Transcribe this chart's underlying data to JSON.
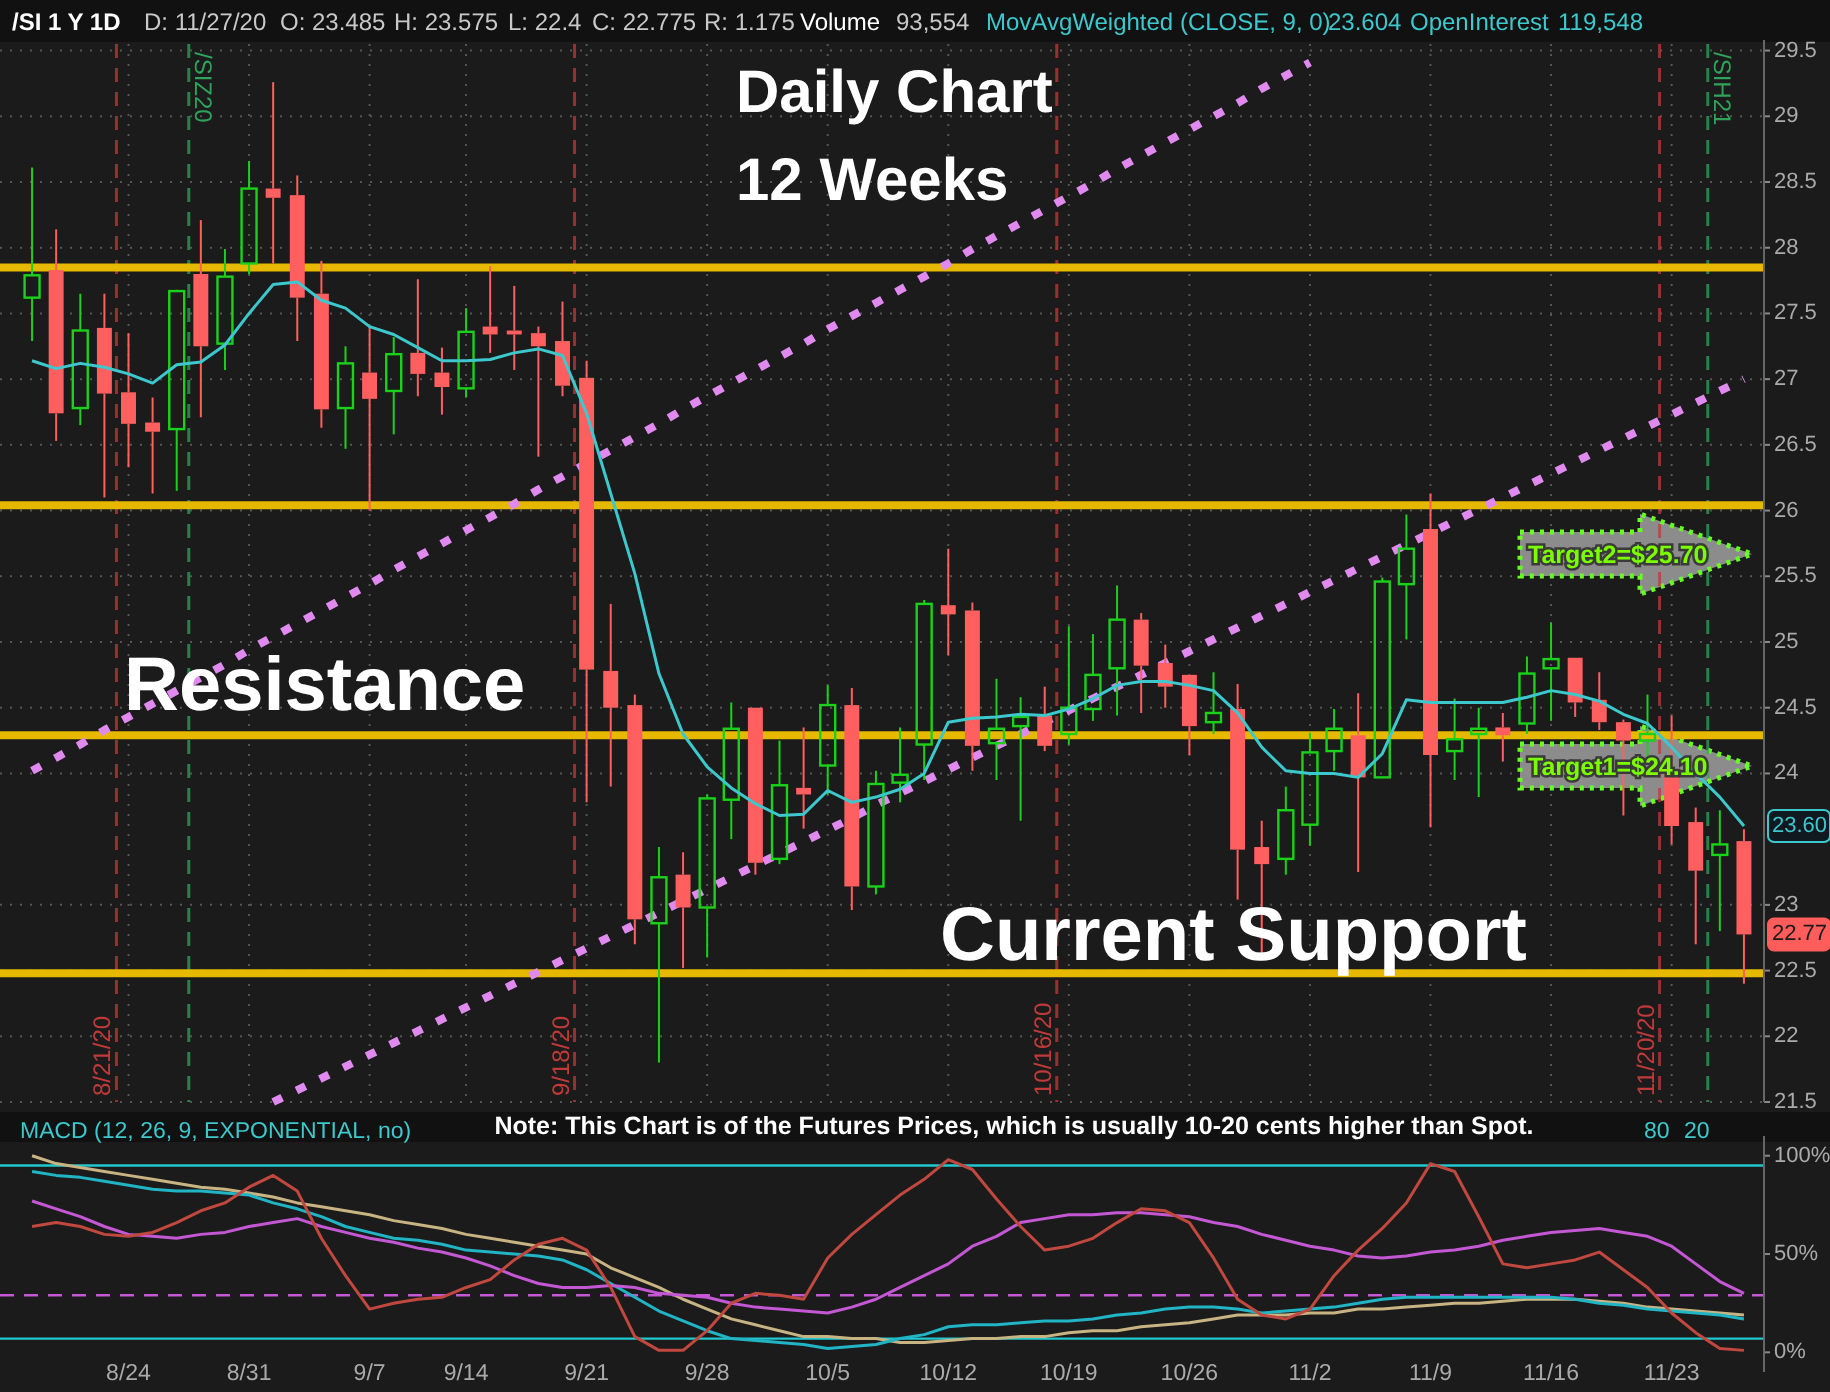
{
  "chart_data": [
    {
      "type": "candlestick",
      "title": "Daily Chart",
      "subtitle": "12 Weeks",
      "categories": [
        null,
        null,
        null,
        null,
        null,
        null,
        null,
        null,
        null,
        null,
        null,
        null,
        null,
        null,
        null,
        null,
        null,
        null,
        null,
        null,
        null,
        null,
        null,
        null,
        null,
        null,
        null,
        null,
        null,
        null,
        null,
        null,
        null,
        null,
        null,
        null,
        null,
        null,
        null,
        null,
        null,
        null,
        null,
        null,
        null,
        null,
        null,
        null,
        null,
        null,
        null,
        null,
        null,
        null,
        null,
        null,
        null,
        null,
        null,
        null,
        null,
        null,
        null,
        null,
        null,
        null,
        null,
        null,
        null,
        null,
        null,
        null
      ],
      "tick_labels": "y",
      "ohlc": [
        [
          27.62,
          28.61,
          27.29,
          27.79
        ],
        [
          27.83,
          28.14,
          26.53,
          26.74
        ],
        [
          26.78,
          27.65,
          26.65,
          27.37
        ],
        [
          27.39,
          27.65,
          26.1,
          26.89
        ],
        [
          26.9,
          27.35,
          26.33,
          26.66
        ],
        [
          26.67,
          26.86,
          26.13,
          26.6
        ],
        [
          26.62,
          27.68,
          26.15,
          27.67
        ],
        [
          27.8,
          28.21,
          26.71,
          27.25
        ],
        [
          27.27,
          27.99,
          27.07,
          27.78
        ],
        [
          27.88,
          28.66,
          27.8,
          28.45
        ],
        [
          28.45,
          29.26,
          27.88,
          28.38
        ],
        [
          28.4,
          28.55,
          27.29,
          27.62
        ],
        [
          27.65,
          27.9,
          26.63,
          26.77
        ],
        [
          26.78,
          27.25,
          26.47,
          27.12
        ],
        [
          27.05,
          27.4,
          26.0,
          26.85
        ],
        [
          26.91,
          27.32,
          26.58,
          27.19
        ],
        [
          27.2,
          27.76,
          26.87,
          27.04
        ],
        [
          27.05,
          27.24,
          26.73,
          26.94
        ],
        [
          26.93,
          27.54,
          26.86,
          27.36
        ],
        [
          27.4,
          27.86,
          27.2,
          27.34
        ],
        [
          27.37,
          27.71,
          27.07,
          27.34
        ],
        [
          27.35,
          27.4,
          26.41,
          27.25
        ],
        [
          27.29,
          27.59,
          26.87,
          26.95
        ],
        [
          27.01,
          27.14,
          23.78,
          24.79
        ],
        [
          24.78,
          25.29,
          23.9,
          24.5
        ],
        [
          24.52,
          24.6,
          22.7,
          22.89
        ],
        [
          22.86,
          23.44,
          21.8,
          23.21
        ],
        [
          23.23,
          23.4,
          22.52,
          22.98
        ],
        [
          22.98,
          23.84,
          22.6,
          23.81
        ],
        [
          23.8,
          24.54,
          23.5,
          24.34
        ],
        [
          24.5,
          24.5,
          23.23,
          23.32
        ],
        [
          23.35,
          24.25,
          23.31,
          23.91
        ],
        [
          23.89,
          24.35,
          23.58,
          23.84
        ],
        [
          24.06,
          24.67,
          23.84,
          24.52
        ],
        [
          24.52,
          24.65,
          22.96,
          23.14
        ],
        [
          23.14,
          24.02,
          23.08,
          23.92
        ],
        [
          23.93,
          24.35,
          23.78,
          23.99
        ],
        [
          24.22,
          25.32,
          23.95,
          25.29
        ],
        [
          25.28,
          25.71,
          24.9,
          25.21
        ],
        [
          25.24,
          25.3,
          24.02,
          24.21
        ],
        [
          24.23,
          24.72,
          23.95,
          24.34
        ],
        [
          24.36,
          24.58,
          23.64,
          24.43
        ],
        [
          24.44,
          24.66,
          24.17,
          24.21
        ],
        [
          24.3,
          25.12,
          24.22,
          24.5
        ],
        [
          24.49,
          25.06,
          24.4,
          24.75
        ],
        [
          24.8,
          25.43,
          24.44,
          25.17
        ],
        [
          25.17,
          25.22,
          24.46,
          24.82
        ],
        [
          24.84,
          24.98,
          24.5,
          24.66
        ],
        [
          24.75,
          24.75,
          24.14,
          24.36
        ],
        [
          24.39,
          24.77,
          24.3,
          24.46
        ],
        [
          24.49,
          24.68,
          23.04,
          23.42
        ],
        [
          23.44,
          23.64,
          22.63,
          23.31
        ],
        [
          23.35,
          23.9,
          23.23,
          23.72
        ],
        [
          23.61,
          24.31,
          23.45,
          24.16
        ],
        [
          24.17,
          24.49,
          24.02,
          24.34
        ],
        [
          24.29,
          24.61,
          23.25,
          23.97
        ],
        [
          23.97,
          25.49,
          23.97,
          25.46
        ],
        [
          25.44,
          25.97,
          25.02,
          25.71
        ],
        [
          25.86,
          26.13,
          23.59,
          24.14
        ],
        [
          24.17,
          24.57,
          23.95,
          24.26
        ],
        [
          24.3,
          24.5,
          23.82,
          24.34
        ],
        [
          24.35,
          24.46,
          24.09,
          24.29
        ],
        [
          24.38,
          24.89,
          24.3,
          24.76
        ],
        [
          24.8,
          25.15,
          24.4,
          24.87
        ],
        [
          24.88,
          24.88,
          24.43,
          24.54
        ],
        [
          24.56,
          24.77,
          24.33,
          24.39
        ],
        [
          24.39,
          24.41,
          23.68,
          24.25
        ],
        [
          24.25,
          24.6,
          24.1,
          24.3
        ],
        [
          24.02,
          24.44,
          23.46,
          23.6
        ],
        [
          23.63,
          23.74,
          22.7,
          23.26
        ],
        [
          23.38,
          23.72,
          22.8,
          23.46
        ],
        [
          23.485,
          23.575,
          22.4,
          22.775
        ]
      ],
      "series": [
        {
          "type": "line",
          "line_style": "dotted",
          "color": "#e08af0",
          "values": [
            24.02,
            24.12,
            24.22,
            24.33,
            24.43,
            24.53,
            24.63,
            24.73,
            24.83,
            24.94,
            25.04,
            25.14,
            25.24,
            25.34,
            25.44,
            25.55,
            25.65,
            25.75,
            25.85,
            25.95,
            26.05,
            26.16,
            26.26,
            26.36,
            26.46,
            26.56,
            26.66,
            26.77,
            26.87,
            26.97,
            27.07,
            27.17,
            27.27,
            27.38,
            27.48,
            27.58,
            27.68,
            27.78,
            27.88,
            27.99,
            28.09,
            28.19,
            28.29,
            28.39,
            28.49,
            28.6,
            28.7,
            28.8,
            28.9,
            29.0,
            29.1,
            29.21,
            29.31,
            29.41,
            null,
            null,
            null,
            null,
            null,
            null,
            null,
            null,
            null,
            null,
            null,
            null,
            null,
            null,
            null,
            null,
            null,
            null
          ]
        },
        {
          "type": "line",
          "line_style": "dotted",
          "color": "#e08af0",
          "values": [
            null,
            null,
            null,
            null,
            null,
            null,
            null,
            null,
            null,
            null,
            21.5,
            21.59,
            21.68,
            21.77,
            21.86,
            21.95,
            22.04,
            22.13,
            22.22,
            22.31,
            22.4,
            22.49,
            22.58,
            22.67,
            22.76,
            22.85,
            22.94,
            23.03,
            23.12,
            23.21,
            23.3,
            23.39,
            23.48,
            23.57,
            23.66,
            23.76,
            23.85,
            23.94,
            24.03,
            24.12,
            24.21,
            24.3,
            24.39,
            24.48,
            24.57,
            24.66,
            24.75,
            24.84,
            24.93,
            25.02,
            25.11,
            25.2,
            25.29,
            25.38,
            25.47,
            25.56,
            25.65,
            25.74,
            25.83,
            25.92,
            26.01,
            26.1,
            26.19,
            26.28,
            26.37,
            26.46,
            26.55,
            26.64,
            26.73,
            26.82,
            26.91,
            27.0
          ]
        },
        {
          "type": "line",
          "name": "MovAvgWeighted (CLOSE, 9, 0)",
          "color": "#3cc8cc",
          "values": [
            27.14,
            27.08,
            27.12,
            27.09,
            27.04,
            26.97,
            27.11,
            27.13,
            27.26,
            27.5,
            27.72,
            27.74,
            27.6,
            27.54,
            27.4,
            27.34,
            27.24,
            27.14,
            27.14,
            27.15,
            27.2,
            27.23,
            27.18,
            26.74,
            26.13,
            25.52,
            24.76,
            24.3,
            24.05,
            23.89,
            23.77,
            23.68,
            23.69,
            23.87,
            23.78,
            23.82,
            23.88,
            24.0,
            24.39,
            24.42,
            24.43,
            24.45,
            24.44,
            24.49,
            24.57,
            24.67,
            24.7,
            24.7,
            24.67,
            24.63,
            24.46,
            24.2,
            24.02,
            24.0,
            24.0,
            23.97,
            24.15,
            24.56,
            24.54,
            24.54,
            24.54,
            24.54,
            24.58,
            24.63,
            24.6,
            24.55,
            24.45,
            24.38,
            24.2,
            24.0,
            23.82,
            23.6
          ]
        }
      ],
      "ylim": [
        21.5,
        29.55
      ],
      "yticks": [
        21.5,
        22,
        22.5,
        23,
        24,
        24.5,
        25,
        25.5,
        26,
        26.5,
        27,
        27.5,
        28,
        28.5,
        29,
        29.5
      ],
      "grid": true,
      "ref_lines": [
        {
          "axis": "y",
          "value": 27.85,
          "color": "#e6b800"
        },
        {
          "axis": "y",
          "value": 26.04,
          "color": "#e6b800"
        },
        {
          "axis": "y",
          "value": 24.29,
          "color": "#e6b800"
        },
        {
          "axis": "y",
          "value": 22.48,
          "color": "#e6b800"
        }
      ],
      "annotations": [
        "/SI 1 Y 1D",
        "D: 11/27/20",
        "O: 23.485",
        "H: 23.575",
        "L: 22.4",
        "C: 22.775",
        "R: 1.175",
        "Volume",
        "93,554",
        "23.604",
        "OpenInterest",
        "119,548",
        "Resistance",
        "Current Support",
        "Target2=$25.70",
        "Target1=$24.10",
        {
          "text": "23.60",
          "y": 23.6
        },
        {
          "text": "22.77",
          "y": 22.775
        },
        "8/21/20",
        "9/18/20",
        "10/16/20",
        "11/20/20",
        "/SIZ20",
        "/SIH21"
      ]
    },
    {
      "type": "line",
      "categories": [
        null,
        null,
        null,
        null,
        "8/24",
        null,
        null,
        null,
        null,
        "8/31",
        null,
        null,
        null,
        null,
        "9/7",
        null,
        null,
        null,
        "9/14",
        null,
        null,
        null,
        null,
        "9/21",
        null,
        null,
        null,
        null,
        "9/28",
        null,
        null,
        null,
        null,
        "10/5",
        null,
        null,
        null,
        null,
        "10/12",
        null,
        null,
        null,
        null,
        "10/19",
        null,
        null,
        null,
        null,
        "10/26",
        null,
        null,
        null,
        null,
        "11/2",
        null,
        null,
        null,
        null,
        "11/9",
        null,
        null,
        null,
        null,
        "11/16",
        null,
        null,
        null,
        null,
        "11/23",
        null,
        null,
        null
      ],
      "series": [
        {
          "color": "#c8b482",
          "values": [
            100,
            96,
            94,
            92,
            90,
            88,
            86,
            84,
            83,
            81,
            79,
            76,
            74,
            72,
            70,
            67,
            65,
            63,
            60,
            58,
            56,
            54,
            52,
            50,
            43,
            38,
            33,
            27,
            22,
            17,
            14,
            11,
            8,
            8,
            7,
            7,
            5,
            5,
            6,
            7,
            7,
            8,
            8,
            10,
            11,
            11,
            13,
            14,
            15,
            17,
            19,
            19,
            19,
            20,
            20,
            22,
            22,
            23,
            24,
            25,
            25,
            26,
            27,
            27,
            27,
            26,
            25,
            23,
            22,
            21,
            20,
            19
          ]
        },
        {
          "color": "#20b4c4",
          "values": [
            92,
            90,
            89,
            87,
            85,
            83,
            82,
            82,
            81,
            80,
            76,
            73,
            69,
            64,
            61,
            58,
            57,
            55,
            52,
            51,
            50,
            49,
            47,
            42,
            35,
            28,
            21,
            16,
            11,
            7,
            6,
            5,
            4,
            2,
            3,
            4,
            7,
            9,
            13,
            14,
            14,
            15,
            16,
            16,
            17,
            19,
            20,
            22,
            23,
            23,
            22,
            20,
            21,
            22,
            23,
            25,
            27,
            28,
            28,
            28,
            28,
            28,
            28,
            28,
            27,
            25,
            24,
            22,
            21,
            20,
            19,
            17
          ]
        },
        {
          "color": "#c458d4",
          "values": [
            77,
            73,
            69,
            64,
            60,
            59,
            58,
            60,
            61,
            64,
            66,
            68,
            64,
            61,
            58,
            56,
            53,
            51,
            48,
            44,
            39,
            35,
            33,
            33,
            34,
            33,
            30,
            29,
            28,
            25,
            23,
            22,
            21,
            20,
            23,
            27,
            33,
            39,
            45,
            54,
            59,
            66,
            68,
            70,
            70,
            71,
            71,
            70,
            69,
            66,
            64,
            60,
            57,
            54,
            52,
            49,
            48,
            49,
            51,
            52,
            54,
            57,
            59,
            61,
            62,
            63,
            61,
            59,
            54,
            45,
            36,
            30
          ]
        },
        {
          "color": "#c0483e",
          "values": [
            64,
            66,
            64,
            60,
            59,
            61,
            66,
            72,
            76,
            84,
            90,
            82,
            58,
            39,
            22,
            25,
            27,
            28,
            33,
            37,
            47,
            55,
            58,
            52,
            33,
            8,
            1,
            1,
            11,
            25,
            30,
            29,
            27,
            48,
            60,
            70,
            80,
            88,
            98,
            93,
            78,
            64,
            52,
            54,
            58,
            66,
            73,
            72,
            66,
            48,
            27,
            19,
            17,
            22,
            39,
            52,
            63,
            76,
            96,
            92,
            69,
            45,
            43,
            45,
            47,
            51,
            42,
            33,
            20,
            10,
            2,
            1
          ]
        }
      ],
      "ylim": [
        -10,
        108
      ],
      "yticks": [
        {
          "value": 100,
          "label": "100%"
        },
        {
          "value": 50,
          "label": "50%"
        },
        {
          "value": 0,
          "label": "0%"
        }
      ],
      "ref_lines": [
        {
          "axis": "y",
          "value": 95,
          "color": "#20c8d0"
        },
        {
          "axis": "y",
          "value": 7,
          "color": "#20c8d0"
        },
        {
          "axis": "y",
          "value": 29,
          "color": "#c458d4",
          "line_style": "dashed"
        }
      ],
      "annotations": [
        "MACD (12, 26, 9, EXPONENTIAL, no)",
        "80",
        "20",
        "Note: This Chart is of the Futures Prices, which is usually 10-20 cents higher than Spot."
      ]
    }
  ]
}
